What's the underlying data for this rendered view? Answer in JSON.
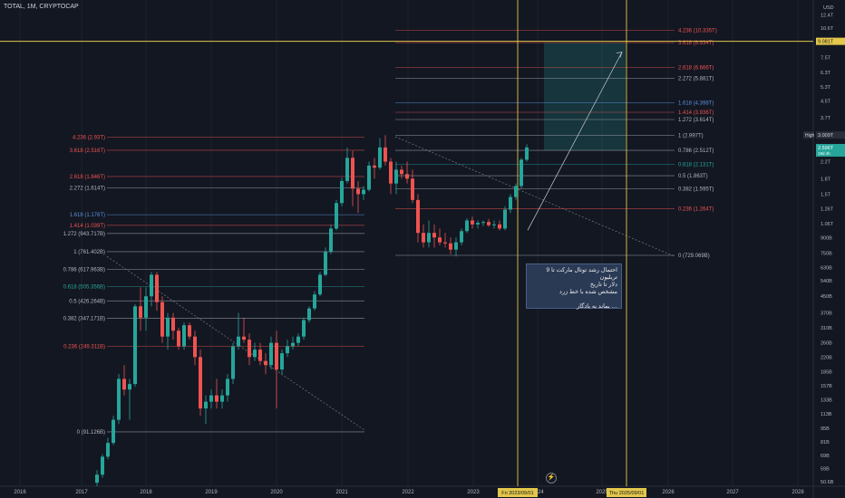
{
  "header": {
    "title": "TOTAL, 1M, CRYPTOCAP",
    "currency": "USD"
  },
  "note": {
    "line1": "احتمال رشد توتال مارکت تا 9 تریلیون",
    "line2": "دلار تا تاریخ",
    "line3": "مشخص شده با خط زرد",
    "line4": "… بماند به یادگار"
  },
  "colors": {
    "bg": "#131722",
    "up": "#26a69a",
    "down": "#ef5350",
    "yellow": "#e3c74a",
    "grid": "#1e222d",
    "text": "#b2b5be"
  },
  "icons": {
    "lightning": "lightning-icon"
  },
  "lightning_glyph": "⚡",
  "chart_data": {
    "type": "candlestick",
    "x_axis": {
      "tick_labels": [
        "2016",
        "2017",
        "2018",
        "2019",
        "2020",
        "2021",
        "2022",
        "2023",
        "2024",
        "2025",
        "2026",
        "2027",
        "2028"
      ],
      "markers": [
        "Fri 2023/09/01",
        "Thu 2025/09/01"
      ]
    },
    "y_axis": {
      "scale": "log",
      "tick_labels": [
        "12.4T",
        "10.6T",
        "9.081T",
        "7.5T",
        "6.3T",
        "5.3T",
        "4.5T",
        "3.7T",
        "3.009T",
        "2.596T",
        "2.2T",
        "1.8T",
        "1.5T",
        "1.26T",
        "1.06T",
        "900B",
        "750B",
        "630B",
        "540B",
        "450B",
        "370B",
        "310B",
        "260B",
        "220B",
        "185B",
        "157B",
        "133B",
        "113B",
        "95B",
        "81B",
        "69B",
        "59B",
        "50.6B"
      ],
      "range": [
        48,
        13000
      ]
    },
    "price_labels": [
      {
        "label": "High",
        "value": "3.009T"
      },
      {
        "label": "",
        "value": "2.596T",
        "sub": "19d 4h"
      },
      {
        "label": "",
        "value": "9.081T"
      }
    ],
    "fib_left": [
      {
        "label": "4.236 (2.93T)",
        "value": 2.93
      },
      {
        "label": "3.618 (2.516T)",
        "value": 2.516
      },
      {
        "label": "2.618 (1.846T)",
        "value": 1.846
      },
      {
        "label": "2.272 (1.614T)",
        "value": 1.614
      },
      {
        "label": "1.618 (1.176T)",
        "value": 1.176
      },
      {
        "label": "1.414 (1.039T)",
        "value": 1.039
      },
      {
        "label": "1.272 (943.717B)",
        "value": 0.9437
      },
      {
        "label": "1 (761.402B)",
        "value": 0.7614
      },
      {
        "label": "0.786 (617.963B)",
        "value": 0.618
      },
      {
        "label": "0.618 (505.356B)",
        "value": 0.5054
      },
      {
        "label": "0.5 (426.264B)",
        "value": 0.4263
      },
      {
        "label": "0.382 (347.171B)",
        "value": 0.3472
      },
      {
        "label": "0.236 (249.311B)",
        "value": 0.2493
      },
      {
        "label": "0 (91.126B)",
        "value": 0.0911
      }
    ],
    "fib_right": [
      {
        "label": "4.236 (10.335T)",
        "value": 10.335
      },
      {
        "label": "3.618 (8.934T)",
        "value": 8.934
      },
      {
        "label": "2.618 (6.666T)",
        "value": 6.666
      },
      {
        "label": "2.272 (5.881T)",
        "value": 5.881
      },
      {
        "label": "1.618 (4.398T)",
        "value": 4.398
      },
      {
        "label": "1.414 (3.936T)",
        "value": 3.936
      },
      {
        "label": "1.272 (3.614T)",
        "value": 3.614
      },
      {
        "label": "1 (2.997T)",
        "value": 2.997
      },
      {
        "label": "0.786 (2.512T)",
        "value": 2.512
      },
      {
        "label": "0.618 (2.131T)",
        "value": 2.131
      },
      {
        "label": "0.5 (1.863T)",
        "value": 1.863
      },
      {
        "label": "0.382 (1.595T)",
        "value": 1.595
      },
      {
        "label": "0.236 (1.264T)",
        "value": 1.264
      },
      {
        "label": "0 (729.069B)",
        "value": 0.729
      }
    ],
    "candles": [
      {
        "o": 0.05,
        "h": 0.058,
        "l": 0.048,
        "c": 0.055
      },
      {
        "o": 0.055,
        "h": 0.07,
        "l": 0.053,
        "c": 0.068
      },
      {
        "o": 0.068,
        "h": 0.085,
        "l": 0.066,
        "c": 0.08
      },
      {
        "o": 0.08,
        "h": 0.11,
        "l": 0.078,
        "c": 0.105
      },
      {
        "o": 0.105,
        "h": 0.18,
        "l": 0.1,
        "c": 0.17
      },
      {
        "o": 0.17,
        "h": 0.2,
        "l": 0.14,
        "c": 0.15
      },
      {
        "o": 0.15,
        "h": 0.17,
        "l": 0.105,
        "c": 0.16
      },
      {
        "o": 0.16,
        "h": 0.41,
        "l": 0.155,
        "c": 0.4
      },
      {
        "o": 0.4,
        "h": 0.5,
        "l": 0.3,
        "c": 0.35
      },
      {
        "o": 0.35,
        "h": 0.5,
        "l": 0.3,
        "c": 0.45
      },
      {
        "o": 0.45,
        "h": 0.6,
        "l": 0.4,
        "c": 0.58
      },
      {
        "o": 0.58,
        "h": 0.6,
        "l": 0.38,
        "c": 0.42
      },
      {
        "o": 0.42,
        "h": 0.45,
        "l": 0.26,
        "c": 0.28
      },
      {
        "o": 0.28,
        "h": 0.37,
        "l": 0.24,
        "c": 0.35
      },
      {
        "o": 0.35,
        "h": 0.37,
        "l": 0.27,
        "c": 0.3
      },
      {
        "o": 0.3,
        "h": 0.31,
        "l": 0.24,
        "c": 0.25
      },
      {
        "o": 0.25,
        "h": 0.33,
        "l": 0.24,
        "c": 0.32
      },
      {
        "o": 0.32,
        "h": 0.33,
        "l": 0.27,
        "c": 0.28
      },
      {
        "o": 0.28,
        "h": 0.3,
        "l": 0.2,
        "c": 0.22
      },
      {
        "o": 0.22,
        "h": 0.24,
        "l": 0.11,
        "c": 0.12
      },
      {
        "o": 0.12,
        "h": 0.14,
        "l": 0.1,
        "c": 0.13
      },
      {
        "o": 0.13,
        "h": 0.15,
        "l": 0.12,
        "c": 0.14
      },
      {
        "o": 0.14,
        "h": 0.17,
        "l": 0.12,
        "c": 0.13
      },
      {
        "o": 0.13,
        "h": 0.15,
        "l": 0.12,
        "c": 0.14
      },
      {
        "o": 0.14,
        "h": 0.18,
        "l": 0.13,
        "c": 0.17
      },
      {
        "o": 0.17,
        "h": 0.26,
        "l": 0.16,
        "c": 0.25
      },
      {
        "o": 0.25,
        "h": 0.37,
        "l": 0.24,
        "c": 0.28
      },
      {
        "o": 0.28,
        "h": 0.35,
        "l": 0.26,
        "c": 0.27
      },
      {
        "o": 0.27,
        "h": 0.29,
        "l": 0.2,
        "c": 0.22
      },
      {
        "o": 0.22,
        "h": 0.26,
        "l": 0.21,
        "c": 0.24
      },
      {
        "o": 0.24,
        "h": 0.26,
        "l": 0.2,
        "c": 0.21
      },
      {
        "o": 0.21,
        "h": 0.23,
        "l": 0.18,
        "c": 0.2
      },
      {
        "o": 0.2,
        "h": 0.28,
        "l": 0.19,
        "c": 0.26
      },
      {
        "o": 0.26,
        "h": 0.3,
        "l": 0.12,
        "c": 0.19
      },
      {
        "o": 0.19,
        "h": 0.24,
        "l": 0.18,
        "c": 0.23
      },
      {
        "o": 0.23,
        "h": 0.27,
        "l": 0.22,
        "c": 0.25
      },
      {
        "o": 0.25,
        "h": 0.28,
        "l": 0.24,
        "c": 0.26
      },
      {
        "o": 0.26,
        "h": 0.29,
        "l": 0.25,
        "c": 0.28
      },
      {
        "o": 0.28,
        "h": 0.35,
        "l": 0.27,
        "c": 0.34
      },
      {
        "o": 0.34,
        "h": 0.4,
        "l": 0.33,
        "c": 0.39
      },
      {
        "o": 0.39,
        "h": 0.48,
        "l": 0.38,
        "c": 0.46
      },
      {
        "o": 0.46,
        "h": 0.6,
        "l": 0.45,
        "c": 0.58
      },
      {
        "o": 0.58,
        "h": 0.8,
        "l": 0.57,
        "c": 0.76
      },
      {
        "o": 0.76,
        "h": 1.05,
        "l": 0.74,
        "c": 1.0
      },
      {
        "o": 1.0,
        "h": 1.4,
        "l": 0.98,
        "c": 1.35
      },
      {
        "o": 1.35,
        "h": 1.82,
        "l": 1.3,
        "c": 1.75
      },
      {
        "o": 1.75,
        "h": 2.6,
        "l": 1.7,
        "c": 2.3
      },
      {
        "o": 2.3,
        "h": 2.5,
        "l": 1.3,
        "c": 1.6
      },
      {
        "o": 1.6,
        "h": 1.75,
        "l": 1.2,
        "c": 1.5
      },
      {
        "o": 1.5,
        "h": 1.65,
        "l": 1.4,
        "c": 1.58
      },
      {
        "o": 1.58,
        "h": 2.2,
        "l": 1.55,
        "c": 2.1
      },
      {
        "o": 2.1,
        "h": 2.3,
        "l": 1.8,
        "c": 2.05
      },
      {
        "o": 2.05,
        "h": 2.9,
        "l": 2.0,
        "c": 2.6
      },
      {
        "o": 2.6,
        "h": 3.0,
        "l": 2.1,
        "c": 2.2
      },
      {
        "o": 2.2,
        "h": 2.3,
        "l": 1.5,
        "c": 1.7
      },
      {
        "o": 1.7,
        "h": 2.2,
        "l": 1.5,
        "c": 2.0
      },
      {
        "o": 2.0,
        "h": 2.1,
        "l": 1.8,
        "c": 1.9
      },
      {
        "o": 1.9,
        "h": 2.2,
        "l": 1.7,
        "c": 1.8
      },
      {
        "o": 1.8,
        "h": 2.0,
        "l": 1.35,
        "c": 1.4
      },
      {
        "o": 1.4,
        "h": 1.5,
        "l": 0.85,
        "c": 0.95
      },
      {
        "o": 0.95,
        "h": 1.05,
        "l": 0.8,
        "c": 0.85
      },
      {
        "o": 0.85,
        "h": 1.1,
        "l": 0.8,
        "c": 0.95
      },
      {
        "o": 0.95,
        "h": 1.05,
        "l": 0.8,
        "c": 0.9
      },
      {
        "o": 0.9,
        "h": 1.0,
        "l": 0.82,
        "c": 0.85
      },
      {
        "o": 0.85,
        "h": 0.95,
        "l": 0.8,
        "c": 0.84
      },
      {
        "o": 0.84,
        "h": 0.9,
        "l": 0.74,
        "c": 0.78
      },
      {
        "o": 0.78,
        "h": 0.9,
        "l": 0.72,
        "c": 0.85
      },
      {
        "o": 0.85,
        "h": 1.0,
        "l": 0.82,
        "c": 0.97
      },
      {
        "o": 0.97,
        "h": 1.13,
        "l": 0.95,
        "c": 1.1
      },
      {
        "o": 1.1,
        "h": 1.15,
        "l": 1.0,
        "c": 1.05
      },
      {
        "o": 1.05,
        "h": 1.1,
        "l": 1.0,
        "c": 1.07
      },
      {
        "o": 1.07,
        "h": 1.1,
        "l": 1.03,
        "c": 1.08
      },
      {
        "o": 1.08,
        "h": 1.12,
        "l": 1.02,
        "c": 1.04
      },
      {
        "o": 1.04,
        "h": 1.1,
        "l": 1.0,
        "c": 1.05
      },
      {
        "o": 1.05,
        "h": 1.1,
        "l": 0.98,
        "c": 1.0
      },
      {
        "o": 1.0,
        "h": 1.3,
        "l": 0.98,
        "c": 1.25
      },
      {
        "o": 1.25,
        "h": 1.5,
        "l": 1.2,
        "c": 1.45
      },
      {
        "o": 1.45,
        "h": 1.7,
        "l": 1.4,
        "c": 1.65
      },
      {
        "o": 1.65,
        "h": 2.3,
        "l": 1.6,
        "c": 2.25
      },
      {
        "o": 2.25,
        "h": 2.7,
        "l": 2.2,
        "c": 2.6
      }
    ]
  }
}
